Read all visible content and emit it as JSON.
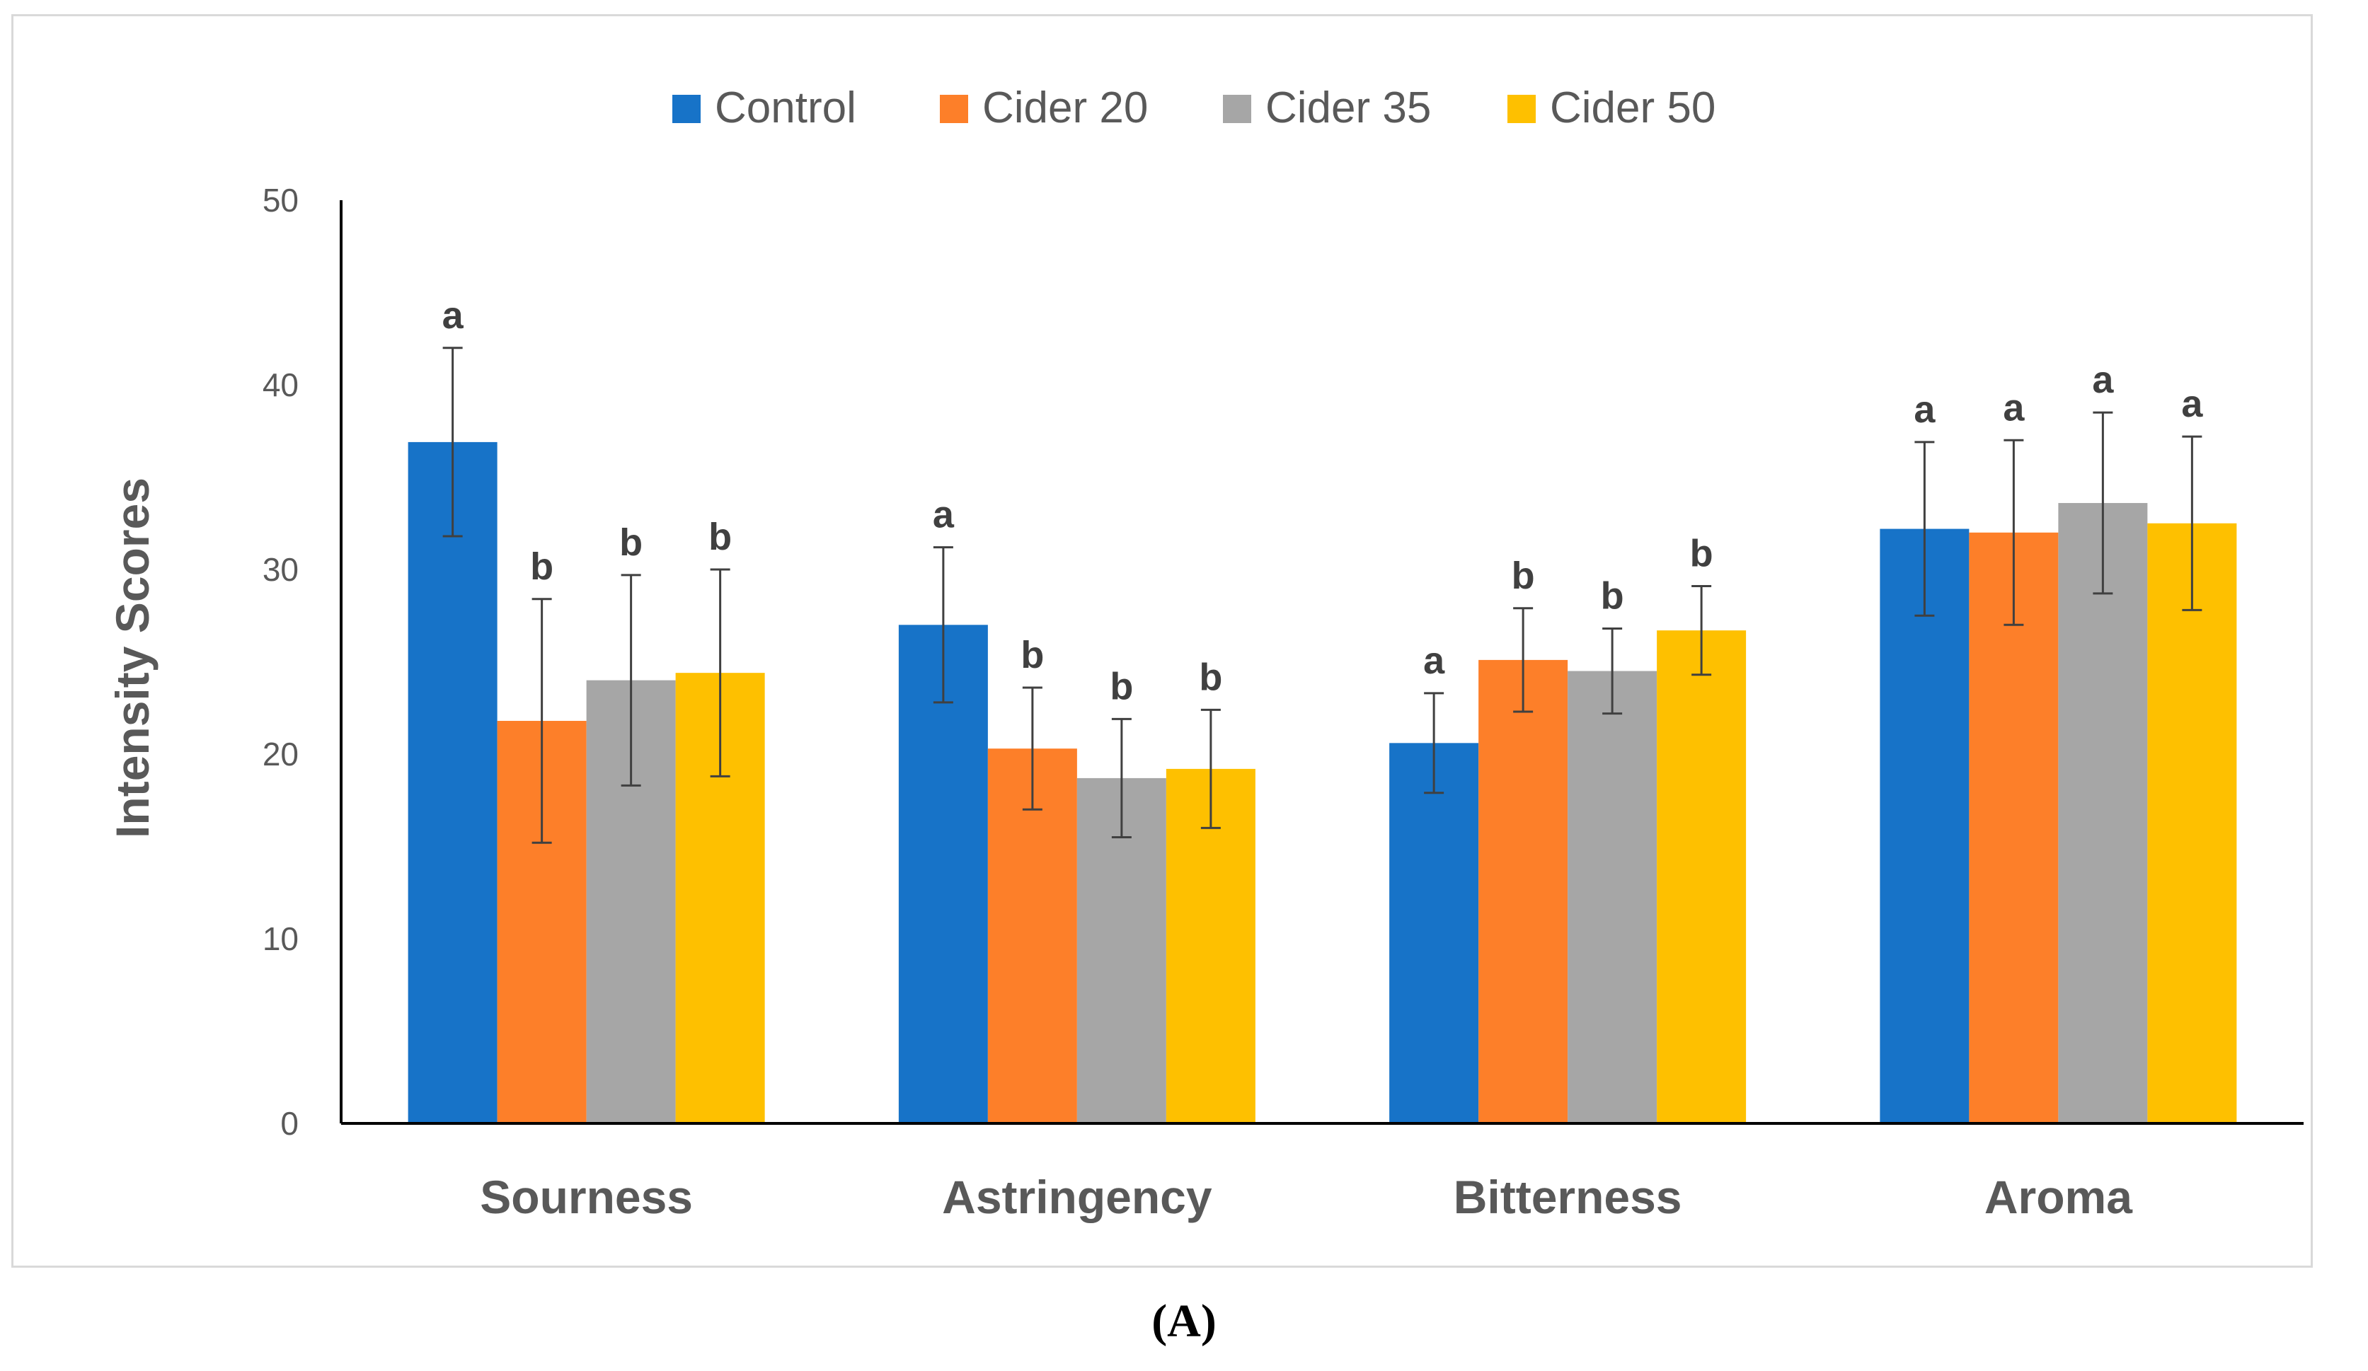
{
  "panel_label": "(A)",
  "colors": {
    "Control": "#1773C8",
    "Cider 20": "#FD7F29",
    "Cider 35": "#A6A6A6",
    "Cider 50": "#FEC000",
    "axis": "#000000",
    "error_bar": "#404040"
  },
  "chart_data": {
    "type": "bar",
    "title": "",
    "xlabel": "",
    "ylabel": "Intensity Scores",
    "ylim": [
      0,
      50
    ],
    "yticks": [
      0,
      10,
      20,
      30,
      40,
      50
    ],
    "grid": false,
    "legend_position": "top-center",
    "categories": [
      "Sourness",
      "Astringency",
      "Bitterness",
      "Aroma"
    ],
    "series": [
      {
        "name": "Control",
        "values": [
          36.9,
          27.0,
          20.6,
          32.2
        ],
        "errors": [
          5.1,
          4.2,
          2.7,
          4.7
        ],
        "labels": [
          "a",
          "a",
          "a",
          "a"
        ]
      },
      {
        "name": "Cider 20",
        "values": [
          21.8,
          20.3,
          25.1,
          32.0
        ],
        "errors": [
          6.6,
          3.3,
          2.8,
          5.0
        ],
        "labels": [
          "b",
          "b",
          "b",
          "a"
        ]
      },
      {
        "name": "Cider 35",
        "values": [
          24.0,
          18.7,
          24.5,
          33.6
        ],
        "errors": [
          5.7,
          3.2,
          2.3,
          4.9
        ],
        "labels": [
          "b",
          "b",
          "b",
          "a"
        ]
      },
      {
        "name": "Cider 50",
        "values": [
          24.4,
          19.2,
          26.7,
          32.5
        ],
        "errors": [
          5.6,
          3.2,
          2.4,
          4.7
        ],
        "labels": [
          "b",
          "b",
          "b",
          "a"
        ]
      }
    ]
  }
}
